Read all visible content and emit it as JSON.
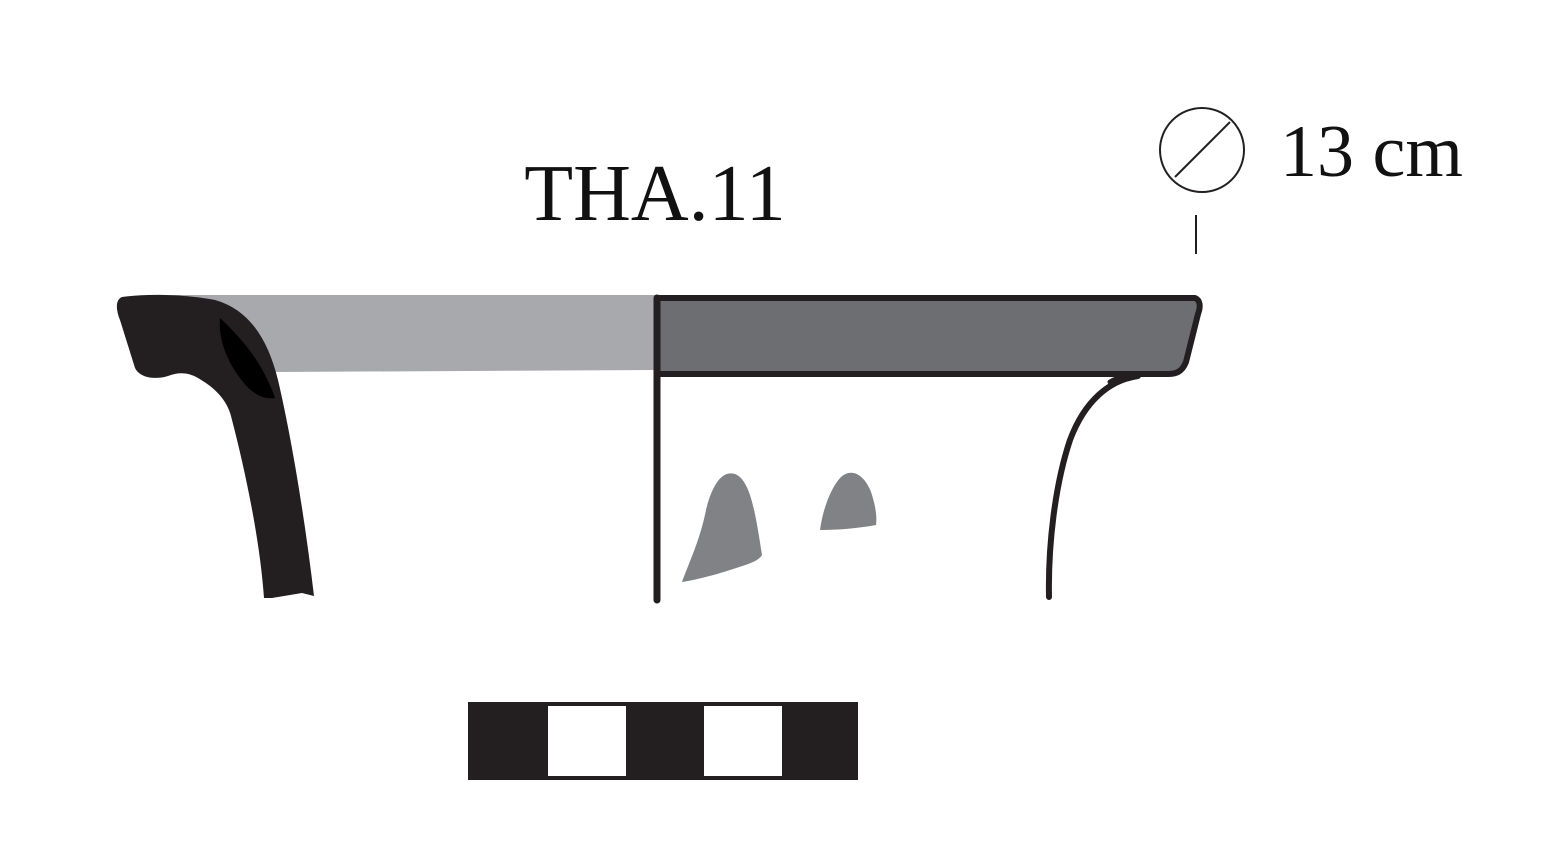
{
  "catalog_label": "THA.11",
  "diameter": {
    "value": "13 cm",
    "symbol": "diameter-symbol-icon"
  },
  "colors": {
    "section_fill": "#231f20",
    "rim_band_light": "#a7a9ac",
    "rim_band_dark": "#6d6e71",
    "decoration": "#808285",
    "outline": "#231f20",
    "background": "#ffffff"
  },
  "scale_bar": {
    "segments": [
      "black",
      "white",
      "black",
      "white",
      "black"
    ]
  }
}
